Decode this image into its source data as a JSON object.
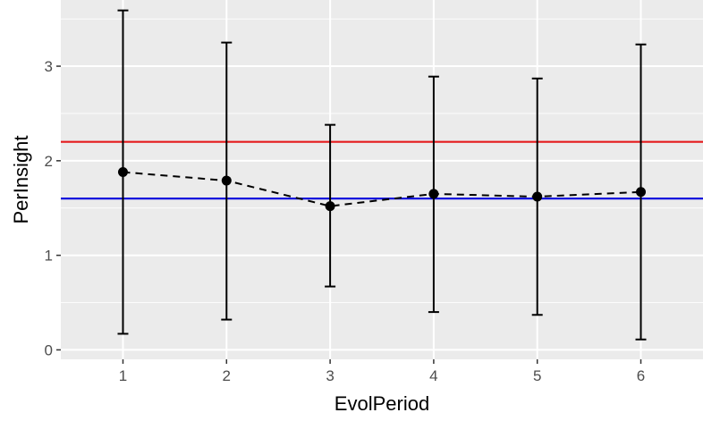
{
  "chart_data": {
    "type": "line",
    "xlabel": "EvolPeriod",
    "ylabel": "PerInsight",
    "x": [
      1,
      2,
      3,
      4,
      5,
      6
    ],
    "xlim": [
      0.4,
      6.6
    ],
    "ylim": [
      -0.1,
      3.7
    ],
    "xticks": [
      "1",
      "2",
      "3",
      "4",
      "5",
      "6"
    ],
    "yticks": [
      "0",
      "1",
      "2",
      "3"
    ],
    "grid": true,
    "series": [
      {
        "values": [
          1.88,
          1.79,
          1.52,
          1.65,
          1.62,
          1.67
        ],
        "error_low": [
          0.17,
          0.32,
          0.67,
          0.4,
          0.37,
          0.11
        ],
        "error_high": [
          3.59,
          3.25,
          2.38,
          2.89,
          2.87,
          3.23
        ],
        "line_style": "dashed",
        "color": "#000000"
      }
    ],
    "reference_lines": [
      {
        "y": 2.2,
        "color": "#e41a1c"
      },
      {
        "y": 1.6,
        "color": "#1111dd"
      }
    ],
    "panel_color": "#ebebeb",
    "gridline_color": "#ffffff"
  }
}
